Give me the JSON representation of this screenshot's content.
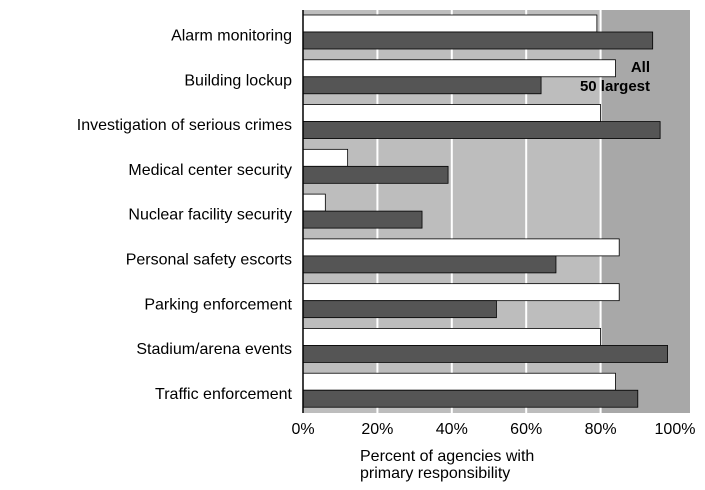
{
  "chart_data": {
    "type": "bar",
    "orientation": "horizontal",
    "xlabel": "Percent of agencies with primary responsibility",
    "categories": [
      "Alarm monitoring",
      "Building lockup",
      "Investigation of serious crimes",
      "Medical center security",
      "Nuclear facility security",
      "Personal safety escorts",
      "Parking enforcement",
      "Stadium/arena events",
      "Traffic enforcement"
    ],
    "series": [
      {
        "name": "All",
        "color": "#ffffff",
        "values": [
          79,
          84,
          80,
          12,
          6,
          85,
          85,
          80,
          84
        ]
      },
      {
        "name": "50 largest",
        "color": "#555555",
        "values": [
          94,
          64,
          96,
          39,
          32,
          68,
          52,
          98,
          90
        ]
      }
    ],
    "xlim": [
      0,
      100
    ],
    "xticks": [
      {
        "value": 0,
        "label": "0%"
      },
      {
        "value": 20,
        "label": "20%"
      },
      {
        "value": 40,
        "label": "40%"
      },
      {
        "value": 60,
        "label": "60%"
      },
      {
        "value": 80,
        "label": "80%"
      },
      {
        "value": 100,
        "label": "100%"
      }
    ],
    "grid": true
  }
}
